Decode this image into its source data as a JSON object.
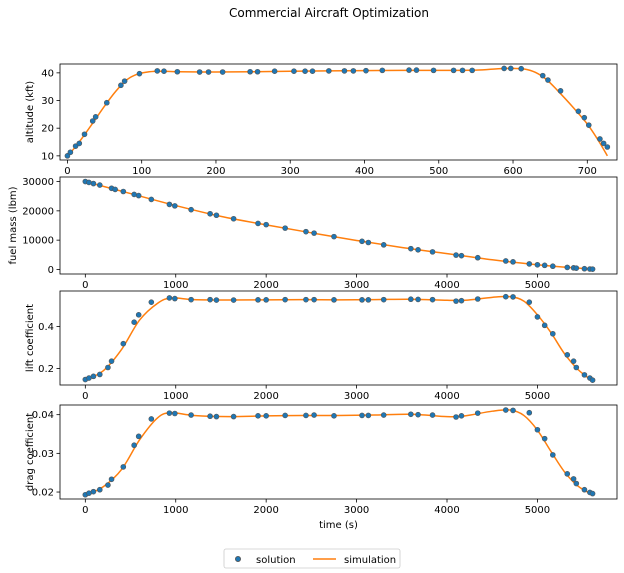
{
  "figure": {
    "title": "Commercial Aircraft Optimization"
  },
  "legend": {
    "placement": "bottom-center",
    "entries": [
      {
        "label": "solution",
        "marker": "circle",
        "color": "#1f77b4"
      },
      {
        "label": "simulation",
        "marker": "line",
        "color": "#ff7f0e"
      }
    ]
  },
  "chart_data": [
    {
      "type": "line",
      "ylabel": "altitude (kft)",
      "xlabel": "",
      "xlim": [
        -10,
        740
      ],
      "ylim": [
        8.5,
        43.2
      ],
      "xticks": [
        0,
        100,
        200,
        300,
        400,
        500,
        600,
        700
      ],
      "yticks": [
        10,
        20,
        30,
        40
      ],
      "grid": false,
      "series": [
        {
          "name": "solution",
          "x": [
            0,
            4,
            11,
            16,
            23,
            34,
            38,
            53,
            72,
            77,
            97,
            121,
            130,
            148,
            178,
            190,
            209,
            246,
            256,
            279,
            305,
            320,
            330,
            352,
            373,
            385,
            402,
            424,
            460,
            470,
            493,
            520,
            532,
            545,
            588,
            597,
            611,
            640,
            647,
            664,
            688,
            696,
            702,
            717,
            722,
            727
          ],
          "y": [
            10,
            11.3,
            13.5,
            14.5,
            17.8,
            22.6,
            24.1,
            29.2,
            35.5,
            37.0,
            39.7,
            40.7,
            40.6,
            40.4,
            40.3,
            40.3,
            40.3,
            40.4,
            40.4,
            40.6,
            40.6,
            40.6,
            40.6,
            40.7,
            40.7,
            40.7,
            40.8,
            40.9,
            41.0,
            41.0,
            40.9,
            40.9,
            40.9,
            40.9,
            41.6,
            41.6,
            41.5,
            39.0,
            37.4,
            33.5,
            26.1,
            23.8,
            21.1,
            16.1,
            14.5,
            13.2
          ]
        },
        {
          "name": "simulation",
          "x": [
            0,
            10,
            20,
            35,
            50,
            65,
            80,
            95,
            110,
            125,
            150,
            200,
            250,
            300,
            350,
            400,
            450,
            500,
            550,
            580,
            600,
            615,
            630,
            645,
            660,
            680,
            700,
            715,
            727
          ],
          "y": [
            10,
            13.0,
            16.5,
            22.2,
            28.0,
            33.3,
            37.5,
            39.6,
            40.4,
            40.6,
            40.4,
            40.3,
            40.4,
            40.6,
            40.7,
            40.8,
            40.9,
            40.9,
            41.0,
            41.5,
            41.6,
            41.4,
            40.2,
            37.6,
            33.6,
            27.8,
            21.5,
            15.5,
            10.0
          ]
        }
      ]
    },
    {
      "type": "line",
      "ylabel": "fuel mass (lbm)",
      "xlabel": "",
      "xlim": [
        -280,
        5880
      ],
      "ylim": [
        -1550,
        31550
      ],
      "xticks": [
        0,
        1000,
        2000,
        3000,
        4000,
        5000
      ],
      "yticks": [
        0,
        10000,
        20000,
        30000
      ],
      "grid": false,
      "series": [
        {
          "name": "solution",
          "x": [
            0,
            40,
            90,
            160,
            290,
            330,
            420,
            540,
            590,
            730,
            930,
            990,
            1170,
            1380,
            1450,
            1640,
            1910,
            2000,
            2210,
            2440,
            2530,
            2750,
            3060,
            3130,
            3300,
            3600,
            3680,
            3840,
            4100,
            4160,
            4340,
            4650,
            4730,
            4910,
            5000,
            5080,
            5170,
            5330,
            5400,
            5430,
            5520,
            5580,
            5610
          ],
          "y": [
            30000,
            29700,
            29300,
            28800,
            27700,
            27300,
            26600,
            25600,
            25200,
            23900,
            22200,
            21700,
            20400,
            19000,
            18500,
            17300,
            15700,
            15300,
            14100,
            12900,
            12400,
            11200,
            9600,
            9200,
            8400,
            7100,
            6700,
            6000,
            4900,
            4700,
            4000,
            2900,
            2600,
            1900,
            1600,
            1400,
            1100,
            700,
            550,
            450,
            250,
            150,
            100
          ]
        },
        {
          "name": "simulation",
          "x": [
            0,
            500,
            1000,
            1500,
            2000,
            2500,
            3000,
            3500,
            4000,
            4500,
            5000,
            5300,
            5610
          ],
          "y": [
            30000,
            25900,
            21800,
            18100,
            15200,
            12500,
            9900,
            7500,
            5400,
            3300,
            1600,
            800,
            100
          ]
        }
      ]
    },
    {
      "type": "line",
      "ylabel": "lift coefficient",
      "xlabel": "",
      "xlim": [
        -280,
        5880
      ],
      "ylim": [
        0.122,
        0.568
      ],
      "xticks": [
        0,
        1000,
        2000,
        3000,
        4000,
        5000
      ],
      "yticks": [
        0.2,
        0.4
      ],
      "grid": false,
      "series": [
        {
          "name": "solution",
          "x": [
            0,
            40,
            90,
            160,
            250,
            290,
            420,
            540,
            590,
            730,
            930,
            990,
            1170,
            1380,
            1450,
            1640,
            1910,
            2000,
            2210,
            2440,
            2530,
            2750,
            3060,
            3130,
            3300,
            3600,
            3680,
            3840,
            4100,
            4160,
            4340,
            4650,
            4730,
            4910,
            5000,
            5080,
            5170,
            5330,
            5400,
            5430,
            5520,
            5580,
            5610
          ],
          "y": [
            0.148,
            0.155,
            0.163,
            0.172,
            0.205,
            0.235,
            0.318,
            0.42,
            0.455,
            0.515,
            0.535,
            0.532,
            0.527,
            0.527,
            0.525,
            0.525,
            0.526,
            0.526,
            0.527,
            0.527,
            0.527,
            0.526,
            0.526,
            0.526,
            0.527,
            0.529,
            0.528,
            0.527,
            0.52,
            0.522,
            0.53,
            0.541,
            0.54,
            0.515,
            0.445,
            0.405,
            0.365,
            0.265,
            0.235,
            0.205,
            0.17,
            0.155,
            0.145
          ]
        },
        {
          "name": "simulation",
          "x": [
            0,
            200,
            400,
            600,
            800,
            950,
            1200,
            1600,
            2000,
            2400,
            2800,
            3200,
            3600,
            4000,
            4200,
            4500,
            4700,
            4850,
            5000,
            5150,
            5300,
            5450,
            5610
          ],
          "y": [
            0.145,
            0.19,
            0.29,
            0.43,
            0.51,
            0.535,
            0.527,
            0.525,
            0.526,
            0.527,
            0.526,
            0.527,
            0.529,
            0.524,
            0.524,
            0.538,
            0.541,
            0.52,
            0.455,
            0.37,
            0.27,
            0.195,
            0.14
          ]
        }
      ]
    },
    {
      "type": "line",
      "ylabel": "drag coefficient",
      "xlabel": "time (s)",
      "xlim": [
        -280,
        5880
      ],
      "ylim": [
        0.0182,
        0.0425
      ],
      "xticks": [
        0,
        1000,
        2000,
        3000,
        4000,
        5000
      ],
      "yticks": [
        0.02,
        0.03,
        0.04
      ],
      "grid": false,
      "series": [
        {
          "name": "solution",
          "x": [
            0,
            40,
            90,
            160,
            250,
            290,
            420,
            540,
            590,
            730,
            930,
            990,
            1170,
            1380,
            1450,
            1640,
            1910,
            2000,
            2210,
            2440,
            2530,
            2750,
            3060,
            3130,
            3300,
            3600,
            3680,
            3840,
            4100,
            4160,
            4340,
            4650,
            4730,
            4910,
            5000,
            5080,
            5170,
            5330,
            5400,
            5430,
            5520,
            5580,
            5610
          ],
          "y": [
            0.0193,
            0.0197,
            0.0201,
            0.0206,
            0.0218,
            0.0233,
            0.0265,
            0.0321,
            0.0344,
            0.0389,
            0.0404,
            0.0403,
            0.0399,
            0.0396,
            0.0395,
            0.0395,
            0.0397,
            0.0397,
            0.0398,
            0.0398,
            0.0399,
            0.0397,
            0.0398,
            0.0398,
            0.0399,
            0.0401,
            0.04,
            0.0399,
            0.0394,
            0.0397,
            0.0404,
            0.0412,
            0.0411,
            0.0405,
            0.0361,
            0.0338,
            0.0296,
            0.0247,
            0.0234,
            0.0222,
            0.0206,
            0.0199,
            0.0196
          ]
        },
        {
          "name": "simulation",
          "x": [
            0,
            200,
            400,
            600,
            800,
            950,
            1200,
            1600,
            2000,
            2400,
            2800,
            3200,
            3600,
            4000,
            4200,
            4500,
            4700,
            4850,
            5000,
            5150,
            5300,
            5450,
            5610
          ],
          "y": [
            0.0191,
            0.0214,
            0.0258,
            0.0335,
            0.0392,
            0.0405,
            0.0398,
            0.0395,
            0.0397,
            0.0398,
            0.0398,
            0.0399,
            0.0401,
            0.0395,
            0.0397,
            0.0409,
            0.0412,
            0.0398,
            0.036,
            0.0305,
            0.0252,
            0.0215,
            0.0193
          ]
        }
      ]
    }
  ]
}
